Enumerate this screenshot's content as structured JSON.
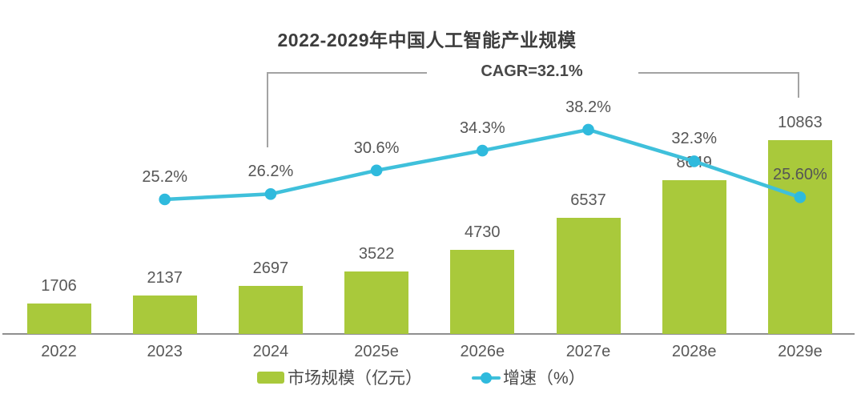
{
  "chart_data": {
    "type": "bar",
    "combo": "bar+line",
    "title": "2022-2029年中国人工智能产业规模",
    "categories": [
      "2022",
      "2023",
      "2024",
      "2025e",
      "2026e",
      "2027e",
      "2028e",
      "2029e"
    ],
    "series": [
      {
        "name": "市场规模（亿元）",
        "type": "bar",
        "values": [
          1706,
          2137,
          2697,
          3522,
          4730,
          6537,
          8649,
          10863
        ],
        "value_labels": [
          "1706",
          "2137",
          "2697",
          "3522",
          "4730",
          "6537",
          "8649",
          "10863"
        ]
      },
      {
        "name": "增速（%）",
        "type": "line",
        "values": [
          null,
          25.2,
          26.2,
          30.6,
          34.3,
          38.2,
          32.3,
          25.6
        ],
        "value_labels": [
          "",
          "25.2%",
          "26.2%",
          "30.6%",
          "34.3%",
          "38.2%",
          "32.3%",
          "25.60%"
        ]
      }
    ],
    "annotation": {
      "text": "CAGR=32.1%",
      "from_category": "2024",
      "to_category": "2029e"
    },
    "legend": [
      "市场规模（亿元）",
      "增速（%）"
    ],
    "legend_position": "bottom",
    "axes_visible": false,
    "grid": false,
    "colors": {
      "bar": "#a9c93b",
      "line": "#3fc0db",
      "dot": "#2fbadd"
    }
  }
}
